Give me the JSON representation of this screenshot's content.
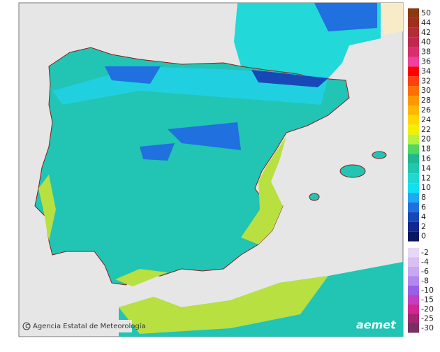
{
  "map": {
    "credit": "Agencia Estatal de Meteorología",
    "logo": "aemet"
  },
  "legend": {
    "positive": [
      {
        "label": "50",
        "color": "#8b3a10"
      },
      {
        "label": "44",
        "color": "#a0301c"
      },
      {
        "label": "42",
        "color": "#b0303a"
      },
      {
        "label": "40",
        "color": "#c02850"
      },
      {
        "label": "38",
        "color": "#d8306a"
      },
      {
        "label": "36",
        "color": "#f040a0"
      },
      {
        "label": "34",
        "color": "#ff0000"
      },
      {
        "label": "32",
        "color": "#ff4010"
      },
      {
        "label": "30",
        "color": "#ff7000"
      },
      {
        "label": "28",
        "color": "#ff9800"
      },
      {
        "label": "26",
        "color": "#ffb800"
      },
      {
        "label": "24",
        "color": "#ffd800"
      },
      {
        "label": "22",
        "color": "#f0f000"
      },
      {
        "label": "20",
        "color": "#b8f040"
      },
      {
        "label": "18",
        "color": "#50d860"
      },
      {
        "label": "16",
        "color": "#20b890"
      },
      {
        "label": "14",
        "color": "#20c8b0"
      },
      {
        "label": "12",
        "color": "#20d8d0"
      },
      {
        "label": "10",
        "color": "#10e0f0"
      },
      {
        "label": "8",
        "color": "#20a8f0"
      },
      {
        "label": "6",
        "color": "#2070e0"
      },
      {
        "label": "4",
        "color": "#1848b8"
      },
      {
        "label": "2",
        "color": "#102890"
      },
      {
        "label": "0",
        "color": "#081860"
      }
    ],
    "negative": [
      {
        "label": "-2",
        "color": "#e8d8f8"
      },
      {
        "label": "-4",
        "color": "#d8c0f0"
      },
      {
        "label": "-6",
        "color": "#c8a8f0"
      },
      {
        "label": "-8",
        "color": "#b088f0"
      },
      {
        "label": "-10",
        "color": "#9860e8"
      },
      {
        "label": "-15",
        "color": "#c040c0"
      },
      {
        "label": "-20",
        "color": "#d02890"
      },
      {
        "label": "-25",
        "color": "#a02870"
      },
      {
        "label": "-30",
        "color": "#783060"
      }
    ]
  }
}
